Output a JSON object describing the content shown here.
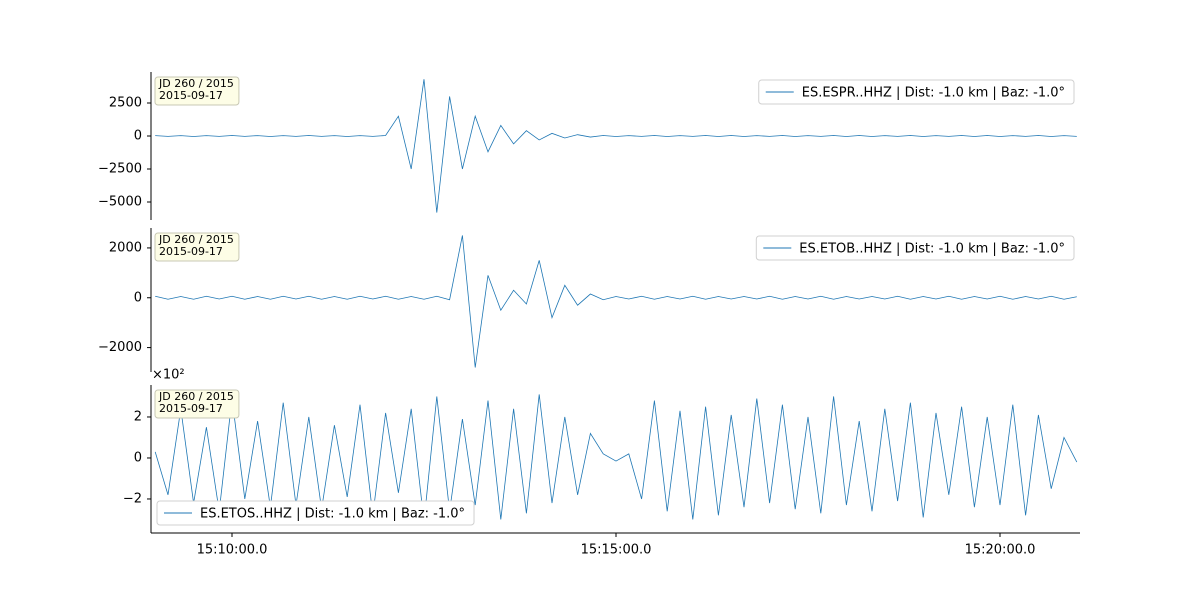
{
  "chart_data": {
    "type": "line",
    "xlim": [
      "15:08:57.5",
      "15:21:02.5"
    ],
    "xticks": [
      "15:10:00.0",
      "15:15:00.0",
      "15:20:00.0"
    ],
    "x": [
      "15:09:00.0",
      "15:09:10.0",
      "15:09:20.0",
      "15:09:30.0",
      "15:09:40.0",
      "15:09:50.0",
      "15:10:00.0",
      "15:10:10.0",
      "15:10:20.0",
      "15:10:30.0",
      "15:10:40.0",
      "15:10:50.0",
      "15:11:00.0",
      "15:11:10.0",
      "15:11:20.0",
      "15:11:30.0",
      "15:11:40.0",
      "15:11:50.0",
      "15:12:00.0",
      "15:12:10.0",
      "15:12:20.0",
      "15:12:30.0",
      "15:12:40.0",
      "15:12:50.0",
      "15:13:00.0",
      "15:13:10.0",
      "15:13:20.0",
      "15:13:30.0",
      "15:13:40.0",
      "15:13:50.0",
      "15:14:00.0",
      "15:14:10.0",
      "15:14:20.0",
      "15:14:30.0",
      "15:14:40.0",
      "15:14:50.0",
      "15:15:00.0",
      "15:15:10.0",
      "15:15:20.0",
      "15:15:30.0",
      "15:15:40.0",
      "15:15:50.0",
      "15:16:00.0",
      "15:16:10.0",
      "15:16:20.0",
      "15:16:30.0",
      "15:16:40.0",
      "15:16:50.0",
      "15:17:00.0",
      "15:17:10.0",
      "15:17:20.0",
      "15:17:30.0",
      "15:17:40.0",
      "15:17:50.0",
      "15:18:00.0",
      "15:18:10.0",
      "15:18:20.0",
      "15:18:30.0",
      "15:18:40.0",
      "15:18:50.0",
      "15:19:00.0",
      "15:19:10.0",
      "15:19:20.0",
      "15:19:30.0",
      "15:19:40.0",
      "15:19:50.0",
      "15:20:00.0",
      "15:20:10.0",
      "15:20:20.0",
      "15:20:30.0",
      "15:20:40.0",
      "15:20:50.0",
      "15:21:00.0"
    ],
    "panels": [
      {
        "annotation": [
          "JD 260 / 2015",
          "2015-09-17"
        ],
        "legend": "upper right",
        "ylim": [
          -6364,
          4848
        ],
        "yticks": [
          {
            "value": -5000,
            "label": "−5000"
          },
          {
            "value": -2500,
            "label": "−2500"
          },
          0,
          2500
        ],
        "series": [
          {
            "name": "ES.ESPR..HHZ | Dist: -1.0 km | Baz: -1.0°",
            "color": "#1f77b4",
            "values": [
              30,
              -30,
              30,
              -40,
              30,
              -30,
              40,
              -30,
              30,
              -40,
              30,
              -30,
              40,
              -30,
              30,
              -40,
              30,
              -30,
              40,
              1500,
              -2500,
              4300,
              -5800,
              3000,
              -2500,
              1500,
              -1200,
              800,
              -600,
              400,
              -300,
              200,
              -150,
              100,
              -80,
              40,
              -40,
              30,
              -30,
              40,
              -40,
              30,
              -30,
              40,
              -40,
              40,
              -40,
              30,
              -30,
              40,
              -40,
              30,
              -30,
              40,
              -40,
              40,
              -40,
              30,
              -30,
              40,
              -40,
              30,
              -30,
              40,
              -40,
              40,
              -40,
              30,
              -30,
              40,
              -40,
              30,
              -30
            ]
          }
        ]
      },
      {
        "annotation": [
          "JD 260 / 2015",
          "2015-09-17"
        ],
        "legend": "upper right",
        "ylim": [
          -2980,
          2800
        ],
        "yticks": [
          {
            "value": -2000,
            "label": "−2000"
          },
          0,
          2000
        ],
        "series": [
          {
            "name": "ES.ETOB..HHZ | Dist: -1.0 km | Baz: -1.0°",
            "color": "#1f77b4",
            "values": [
              60,
              -60,
              50,
              -60,
              60,
              -50,
              60,
              -60,
              50,
              -60,
              60,
              -50,
              60,
              -60,
              50,
              -60,
              60,
              -50,
              60,
              -60,
              50,
              -60,
              60,
              -80,
              2500,
              -2800,
              900,
              -500,
              300,
              -250,
              1500,
              -800,
              500,
              -300,
              150,
              -80,
              50,
              -50,
              60,
              -60,
              50,
              -50,
              60,
              -60,
              50,
              -50,
              50,
              -50,
              60,
              -60,
              50,
              -50,
              60,
              -60,
              50,
              -50,
              50,
              -50,
              60,
              -60,
              50,
              -50,
              60,
              -60,
              50,
              -50,
              60,
              -60,
              50,
              -50,
              60,
              -60,
              40
            ]
          }
        ]
      },
      {
        "annotation": [
          "JD 260 / 2015",
          "2015-09-17"
        ],
        "legend": "lower left",
        "ylim": [
          -366,
          356
        ],
        "offset_label": "×10²",
        "yticks": [
          {
            "value": -200,
            "label": "−2"
          },
          0,
          {
            "value": 200,
            "label": "2"
          }
        ],
        "series": [
          {
            "name": "ES.ETOS..HHZ | Dist: -1.0 km | Baz: -1.0°",
            "color": "#1f77b4",
            "values": [
              30,
              -180,
              240,
              -220,
              150,
              -260,
              290,
              -200,
              180,
              -240,
              270,
              -230,
              200,
              -250,
              160,
              -190,
              260,
              -280,
              220,
              -170,
              240,
              -310,
              300,
              -260,
              190,
              -230,
              280,
              -300,
              240,
              -270,
              310,
              -220,
              200,
              -180,
              120,
              20,
              -15,
              20,
              -200,
              280,
              -260,
              230,
              -300,
              250,
              -280,
              210,
              -240,
              290,
              -220,
              260,
              -250,
              200,
              -270,
              300,
              -230,
              180,
              -260,
              240,
              -210,
              270,
              -290,
              220,
              -180,
              250,
              -240,
              200,
              -230,
              260,
              -280,
              210,
              -150,
              100,
              -20
            ]
          }
        ]
      }
    ]
  }
}
